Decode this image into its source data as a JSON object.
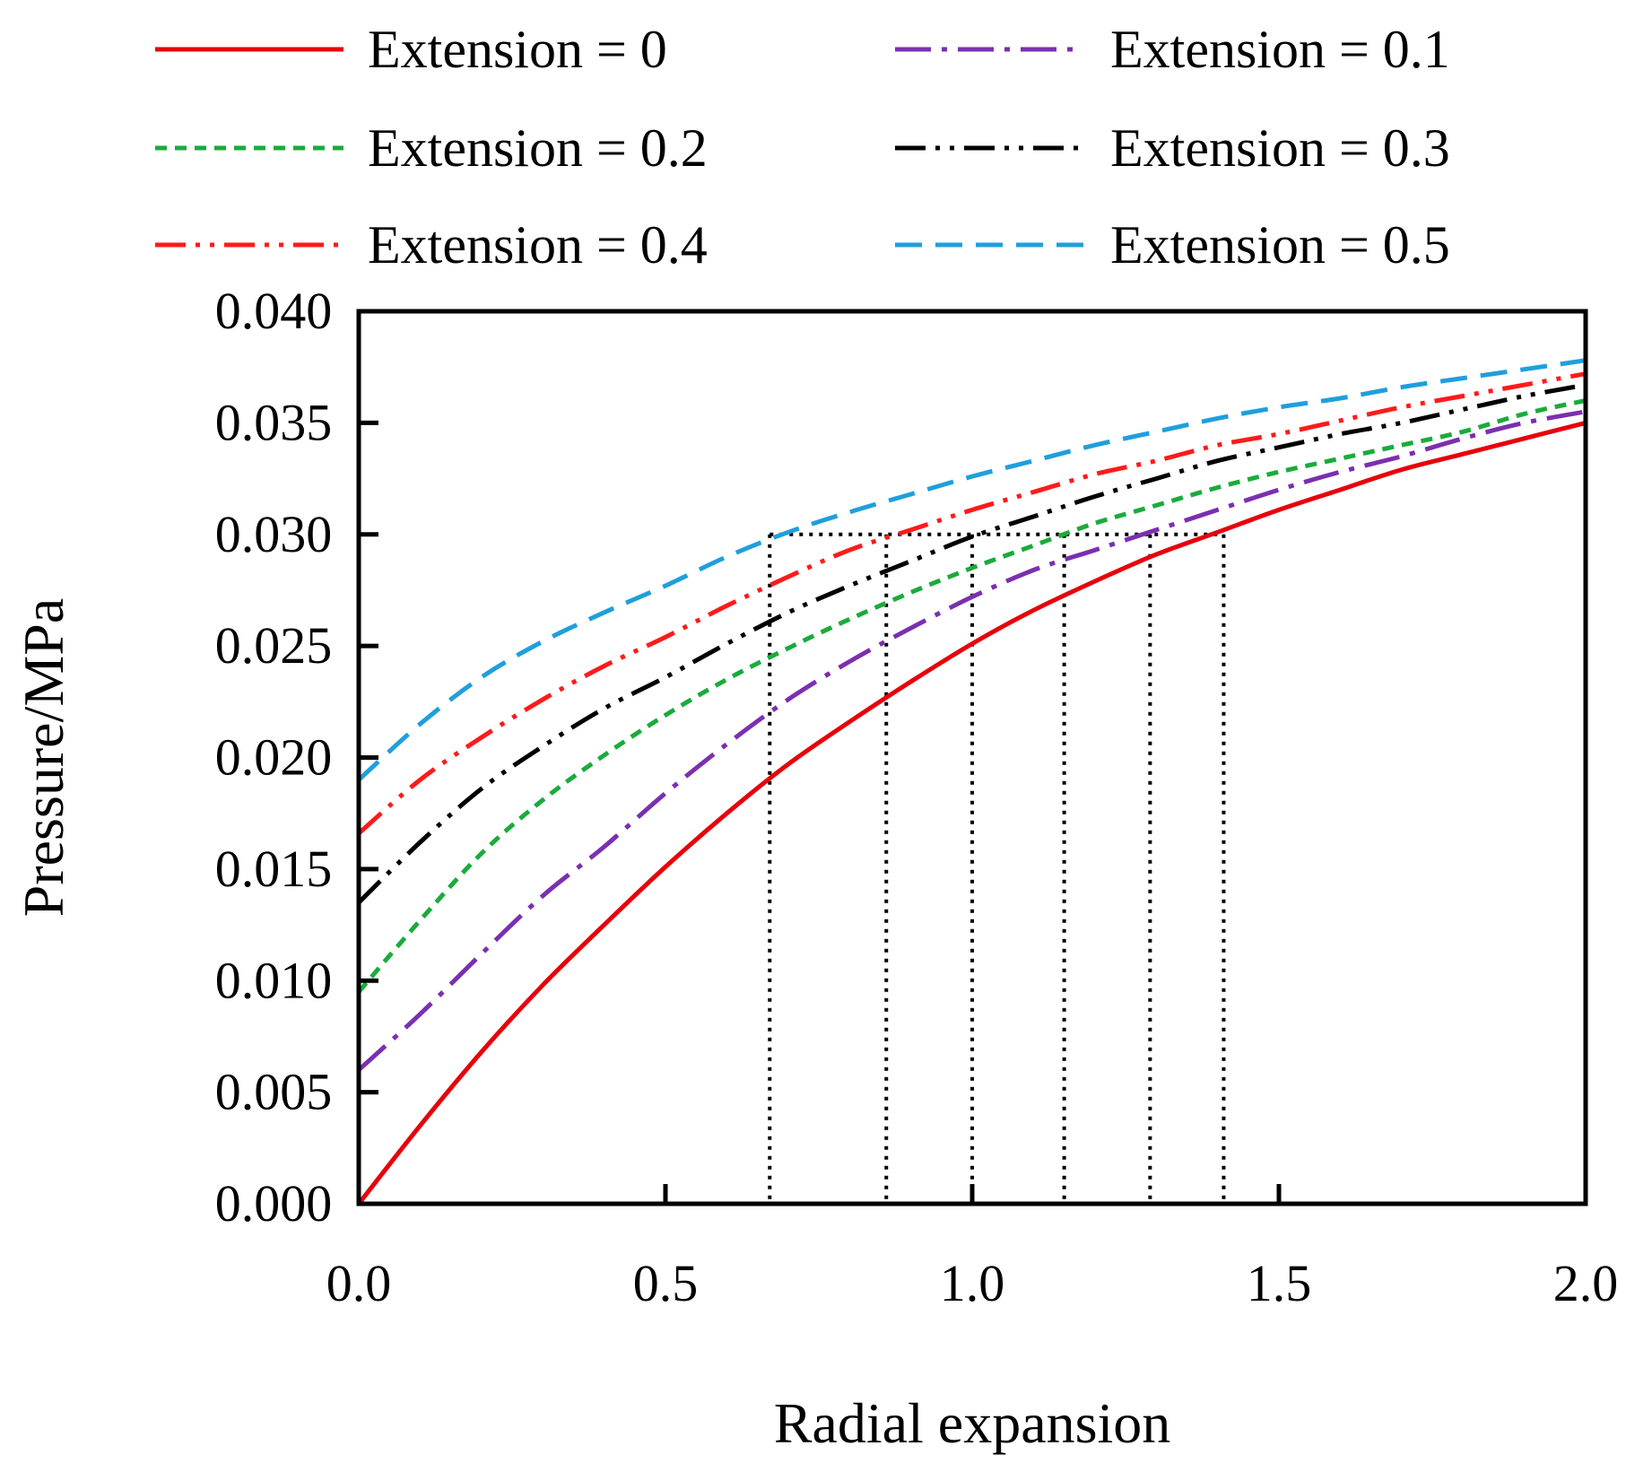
{
  "chart_data": {
    "type": "line",
    "title": "",
    "xlabel": "Radial expansion",
    "ylabel": "Pressure/MPa",
    "xlim": [
      0.0,
      2.0
    ],
    "ylim": [
      0.0,
      0.04
    ],
    "xticks": [
      "0.0",
      "0.5",
      "1.0",
      "1.5",
      "2.0"
    ],
    "yticks": [
      "0.000",
      "0.005",
      "0.010",
      "0.015",
      "0.020",
      "0.025",
      "0.030",
      "0.035",
      "0.040"
    ],
    "grid": false,
    "legend_position": "top",
    "series": [
      {
        "name": "Extension = 0",
        "color": "#e8000b",
        "style": "solid",
        "x": [
          0.0,
          0.1,
          0.2,
          0.3,
          0.4,
          0.5,
          0.6,
          0.7,
          0.8,
          0.9,
          1.0,
          1.1,
          1.2,
          1.3,
          1.4,
          1.5,
          1.6,
          1.7,
          1.8,
          1.9,
          2.0
        ],
        "y": [
          0.0,
          0.0035,
          0.0068,
          0.0098,
          0.0125,
          0.0151,
          0.0175,
          0.0197,
          0.0216,
          0.0234,
          0.0251,
          0.0266,
          0.0279,
          0.0291,
          0.0301,
          0.0311,
          0.032,
          0.0329,
          0.0336,
          0.0343,
          0.035
        ]
      },
      {
        "name": "Extension = 0.1",
        "color": "#7b2fb0",
        "style": "dash-dot",
        "x": [
          0.0,
          0.1,
          0.2,
          0.3,
          0.4,
          0.5,
          0.6,
          0.7,
          0.8,
          0.9,
          1.0,
          1.1,
          1.2,
          1.3,
          1.4,
          1.5,
          1.6,
          1.7,
          1.8,
          1.9,
          2.0
        ],
        "y": [
          0.006,
          0.0085,
          0.0112,
          0.0138,
          0.016,
          0.0184,
          0.0206,
          0.0226,
          0.0243,
          0.0258,
          0.0272,
          0.0284,
          0.0293,
          0.0302,
          0.0311,
          0.032,
          0.0328,
          0.0335,
          0.0343,
          0.035,
          0.0355
        ]
      },
      {
        "name": "Extension = 0.2",
        "color": "#1aab3c",
        "style": "short-dash",
        "x": [
          0.0,
          0.1,
          0.2,
          0.3,
          0.4,
          0.5,
          0.6,
          0.7,
          0.8,
          0.9,
          1.0,
          1.1,
          1.2,
          1.3,
          1.4,
          1.5,
          1.6,
          1.7,
          1.8,
          1.9,
          2.0
        ],
        "y": [
          0.0095,
          0.0127,
          0.0157,
          0.0181,
          0.0201,
          0.0219,
          0.0235,
          0.0249,
          0.0262,
          0.0274,
          0.0285,
          0.0295,
          0.0305,
          0.0313,
          0.0321,
          0.0328,
          0.0334,
          0.034,
          0.0346,
          0.0354,
          0.036
        ]
      },
      {
        "name": "Extension = 0.3",
        "color": "#000000",
        "style": "dash-dot-dot",
        "x": [
          0.0,
          0.1,
          0.2,
          0.3,
          0.4,
          0.5,
          0.6,
          0.7,
          0.8,
          0.9,
          1.0,
          1.1,
          1.2,
          1.3,
          1.4,
          1.5,
          1.6,
          1.7,
          1.8,
          1.9,
          2.0
        ],
        "y": [
          0.0135,
          0.0162,
          0.0186,
          0.0205,
          0.0222,
          0.0236,
          0.0251,
          0.0265,
          0.0277,
          0.0288,
          0.0299,
          0.0308,
          0.0317,
          0.0325,
          0.0333,
          0.0339,
          0.0345,
          0.035,
          0.0356,
          0.0362,
          0.0367
        ]
      },
      {
        "name": "Extension = 0.4",
        "color": "#ff1a1a",
        "style": "dash-dot-dot",
        "x": [
          0.0,
          0.1,
          0.2,
          0.3,
          0.4,
          0.5,
          0.6,
          0.7,
          0.8,
          0.9,
          1.0,
          1.1,
          1.2,
          1.3,
          1.4,
          1.5,
          1.6,
          1.7,
          1.8,
          1.9,
          2.0
        ],
        "y": [
          0.0166,
          0.019,
          0.0209,
          0.0226,
          0.0241,
          0.0254,
          0.0268,
          0.0281,
          0.0293,
          0.0302,
          0.0311,
          0.0319,
          0.0327,
          0.0333,
          0.034,
          0.0345,
          0.0351,
          0.0357,
          0.0362,
          0.0367,
          0.0372
        ]
      },
      {
        "name": "Extension = 0.5",
        "color": "#1f9fdc",
        "style": "long-dash",
        "x": [
          0.0,
          0.1,
          0.2,
          0.3,
          0.4,
          0.5,
          0.6,
          0.7,
          0.8,
          0.9,
          1.0,
          1.1,
          1.2,
          1.3,
          1.4,
          1.5,
          1.6,
          1.7,
          1.8,
          1.9,
          2.0
        ],
        "y": [
          0.019,
          0.0215,
          0.0236,
          0.0252,
          0.0265,
          0.0277,
          0.029,
          0.0301,
          0.031,
          0.0318,
          0.0326,
          0.0333,
          0.034,
          0.0346,
          0.0352,
          0.0357,
          0.0361,
          0.0366,
          0.037,
          0.0374,
          0.0378
        ]
      }
    ],
    "reference_lines": {
      "pressure": 0.03,
      "x_values": [
        0.67,
        0.86,
        1.0,
        1.15,
        1.29,
        1.41
      ]
    }
  }
}
